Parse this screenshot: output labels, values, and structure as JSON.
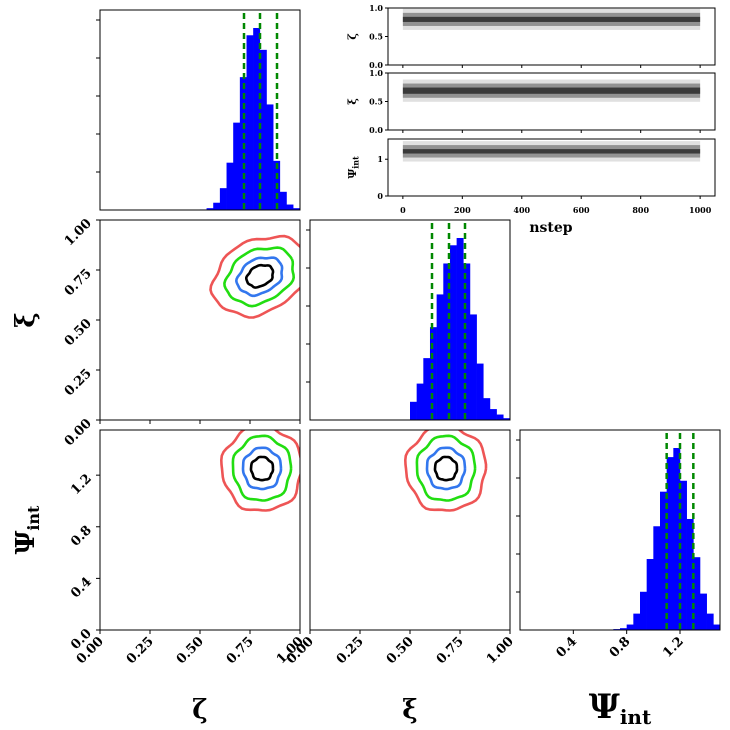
{
  "chart_data": {
    "type": "corner",
    "parameters": [
      {
        "symbol": "ζ",
        "sub": ""
      },
      {
        "symbol": "ξ",
        "sub": ""
      },
      {
        "symbol": "Ψ",
        "sub": "int"
      }
    ],
    "axis_ticks": {
      "zeta_x": [
        "0.00",
        "0.25",
        "0.50",
        "0.75",
        "1.00"
      ],
      "xi_x": [
        "0.00",
        "0.25",
        "0.50",
        "0.75",
        "1.00"
      ],
      "psi_x": [
        "0.4",
        "0.8",
        "1.2"
      ],
      "xi_y": [
        "0.00",
        "0.25",
        "0.50",
        "0.75",
        "1.00"
      ],
      "psi_y": [
        "0.0",
        "0.4",
        "0.8",
        "1.2"
      ]
    },
    "ranges": {
      "zeta": [
        0,
        1
      ],
      "xi": [
        0,
        1
      ],
      "psi": [
        0,
        1.5
      ],
      "psi_rows": [
        0,
        1.55
      ]
    },
    "histograms": [
      {
        "param": "zeta",
        "bin_start": 0.0,
        "bin_width": 0.0333,
        "counts": [
          0,
          0,
          0,
          0,
          0,
          0,
          0,
          0,
          0,
          0,
          0,
          0,
          0,
          0,
          0,
          0.003,
          0.01,
          0.04,
          0.12,
          0.26,
          0.48,
          0.73,
          0.96,
          1.0,
          0.88,
          0.58,
          0.27,
          0.1,
          0.03,
          0.01
        ],
        "quantiles": [
          0.72,
          0.8,
          0.885
        ]
      },
      {
        "param": "xi",
        "bin_start": 0.5,
        "bin_width": 0.0333,
        "counts": [
          0.1,
          0.2,
          0.34,
          0.51,
          0.69,
          0.86,
          0.96,
          1.0,
          0.86,
          0.58,
          0.31,
          0.12,
          0.06,
          0.03,
          0.01
        ],
        "quantiles": [
          0.61,
          0.695,
          0.775
        ]
      },
      {
        "param": "psi",
        "bin_start": 0.7,
        "bin_width": 0.05,
        "counts": [
          0.005,
          0.01,
          0.03,
          0.09,
          0.21,
          0.39,
          0.57,
          0.76,
          0.95,
          1.0,
          0.82,
          0.61,
          0.4,
          0.2,
          0.09,
          0.03,
          0.01
        ],
        "quantiles": [
          1.1,
          1.2,
          1.3
        ]
      }
    ],
    "contours": {
      "colors": [
        "#000000",
        "#3377ee",
        "#22dd11",
        "#ee5555"
      ],
      "xi_vs_zeta": {
        "center": [
          0.8,
          0.72
        ],
        "radii": [
          [
            0.07,
            0.05
          ],
          [
            0.12,
            0.085
          ],
          [
            0.18,
            0.13
          ],
          [
            0.25,
            0.18
          ]
        ],
        "tilt_deg": -28
      },
      "psi_vs_zeta": {
        "center": [
          0.81,
          1.25
        ],
        "radii": [
          [
            0.055,
            0.09
          ],
          [
            0.095,
            0.16
          ],
          [
            0.145,
            0.25
          ],
          [
            0.2,
            0.33
          ]
        ]
      },
      "psi_vs_xi": {
        "center": [
          0.68,
          1.25
        ],
        "radii": [
          [
            0.055,
            0.09
          ],
          [
            0.095,
            0.16
          ],
          [
            0.145,
            0.25
          ],
          [
            0.2,
            0.33
          ]
        ]
      }
    },
    "trace": {
      "xlabel": "nstep",
      "x_ticks": [
        "0",
        "200",
        "400",
        "600",
        "800",
        "1000"
      ],
      "xlim": [
        -50,
        1050
      ],
      "rows": [
        {
          "ylabel": "ζ",
          "y_ticks": [
            "0.0",
            "0.5",
            "1.0"
          ],
          "ylim": [
            0,
            1
          ],
          "band": [
            0.72,
            0.88
          ]
        },
        {
          "ylabel": "ξ",
          "y_ticks": [
            "0.0",
            "0.5",
            "1.0"
          ],
          "ylim": [
            0,
            1
          ],
          "band": [
            0.6,
            0.78
          ]
        },
        {
          "ylabel": "Ψ",
          "ylabel_sub": "int",
          "y_ticks": [
            "0",
            "1"
          ],
          "ylim": [
            0,
            1.55
          ],
          "band": [
            1.1,
            1.33
          ]
        }
      ]
    },
    "colors": {
      "hist": "#0000ff",
      "quantile": "#008800",
      "trace": "#000000"
    }
  }
}
